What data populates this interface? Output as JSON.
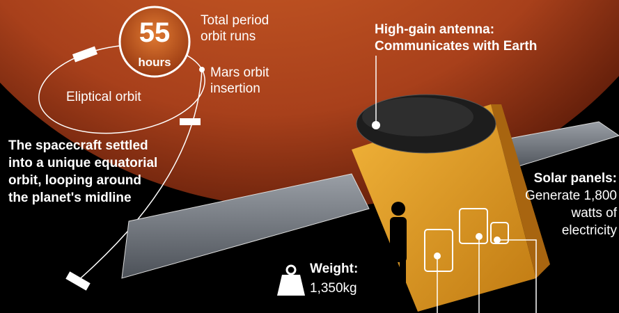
{
  "orbit": {
    "hours_value": "55",
    "hours_unit": "hours",
    "period_label": [
      "Total period",
      "orbit runs"
    ],
    "insertion_label": [
      "Mars orbit",
      "insertion"
    ],
    "ellipse_label": "Eliptical orbit",
    "description": [
      "The spacecraft settled",
      "into a unique equatorial",
      "orbit, looping around",
      "the planet's midline"
    ]
  },
  "antenna": {
    "title": "High-gain antenna:",
    "text": "Communicates with Earth"
  },
  "solar_panels": {
    "title": "Solar panels:",
    "text": [
      "Generate 1,800",
      "watts of",
      "electricity"
    ]
  },
  "weight": {
    "title": "Weight:",
    "value": "1,350kg"
  }
}
